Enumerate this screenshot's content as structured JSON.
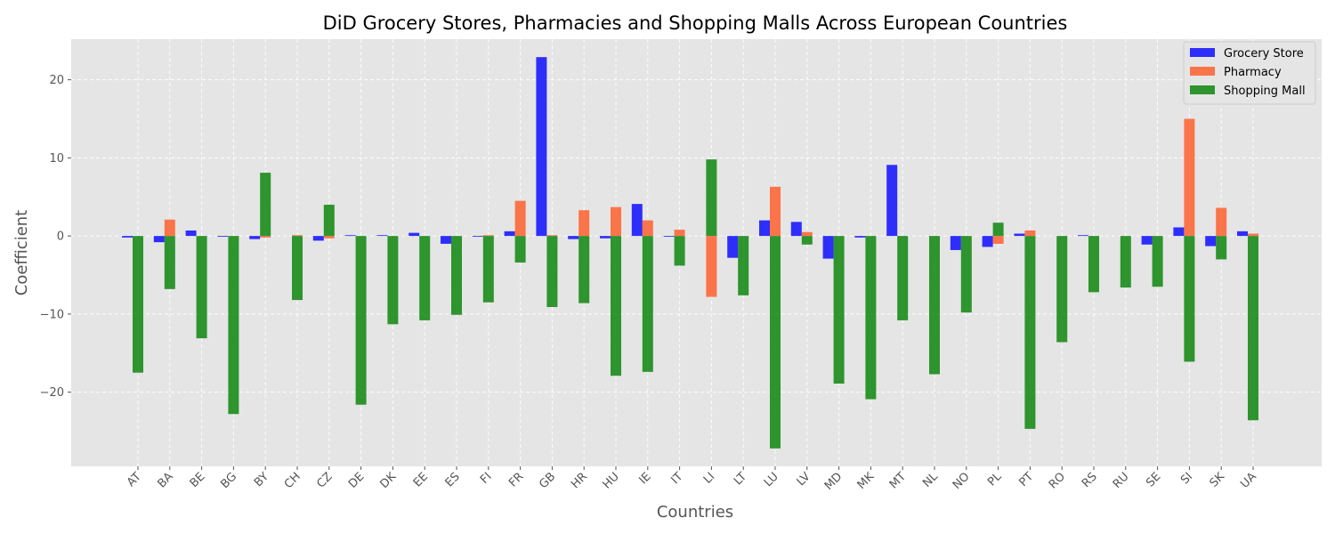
{
  "chart_data": {
    "type": "bar",
    "title": "DiD Grocery Stores, Pharmacies and Shopping Malls Across European Countries",
    "xlabel": "Countries",
    "ylabel": "Coefficient",
    "ylim": [
      -29.5,
      25.2
    ],
    "yticks": [
      -20,
      -10,
      0,
      10,
      20
    ],
    "ytick_labels": [
      "−20",
      "−10",
      "0",
      "10",
      "20"
    ],
    "grid": true,
    "legend_position": "top-right",
    "categories": [
      "AT",
      "BA",
      "BE",
      "BG",
      "BY",
      "CH",
      "CZ",
      "DE",
      "DK",
      "EE",
      "ES",
      "FI",
      "FR",
      "GB",
      "HR",
      "HU",
      "IE",
      "IT",
      "LI",
      "LT",
      "LU",
      "LV",
      "MD",
      "MK",
      "MT",
      "NL",
      "NO",
      "PL",
      "PT",
      "RO",
      "RS",
      "RU",
      "SE",
      "SI",
      "SK",
      "UA"
    ],
    "series": [
      {
        "name": "Grocery Store",
        "color": "#0000ff",
        "values": [
          -0.2,
          -0.8,
          0.7,
          -0.1,
          -0.4,
          0,
          -0.6,
          0.1,
          0.1,
          0.4,
          -1.0,
          -0.1,
          0.6,
          22.9,
          -0.4,
          -0.3,
          4.1,
          -0.1,
          0,
          -2.8,
          2.0,
          1.8,
          -2.9,
          -0.2,
          9.1,
          0,
          -1.8,
          -1.4,
          0.3,
          0,
          0.1,
          0,
          -1.1,
          1.1,
          -1.3,
          0.6
        ]
      },
      {
        "name": "Pharmacy",
        "color": "#ff5722",
        "values": [
          0,
          2.1,
          0,
          0,
          -0.2,
          0.1,
          -0.3,
          0,
          0,
          0,
          0,
          0.1,
          4.5,
          0.1,
          3.3,
          3.7,
          2.0,
          0.8,
          -7.8,
          0,
          6.3,
          0.5,
          0,
          0,
          0,
          0,
          0,
          -1.0,
          0.7,
          0,
          0,
          0,
          0,
          15.0,
          3.6,
          0.3
        ]
      },
      {
        "name": "Shopping Mall",
        "color": "#008000",
        "values": [
          -17.5,
          -6.8,
          -13.1,
          -22.8,
          8.1,
          -8.2,
          4.0,
          -21.6,
          -11.3,
          -10.8,
          -10.1,
          -8.5,
          -3.4,
          -9.1,
          -8.6,
          -17.9,
          -17.4,
          -3.8,
          9.8,
          -7.6,
          -27.2,
          -1.1,
          -18.9,
          -20.9,
          -10.8,
          -17.7,
          -9.8,
          1.7,
          -24.7,
          -13.6,
          -7.2,
          -6.6,
          -6.5,
          -16.1,
          -3.0,
          -23.6
        ]
      }
    ]
  }
}
